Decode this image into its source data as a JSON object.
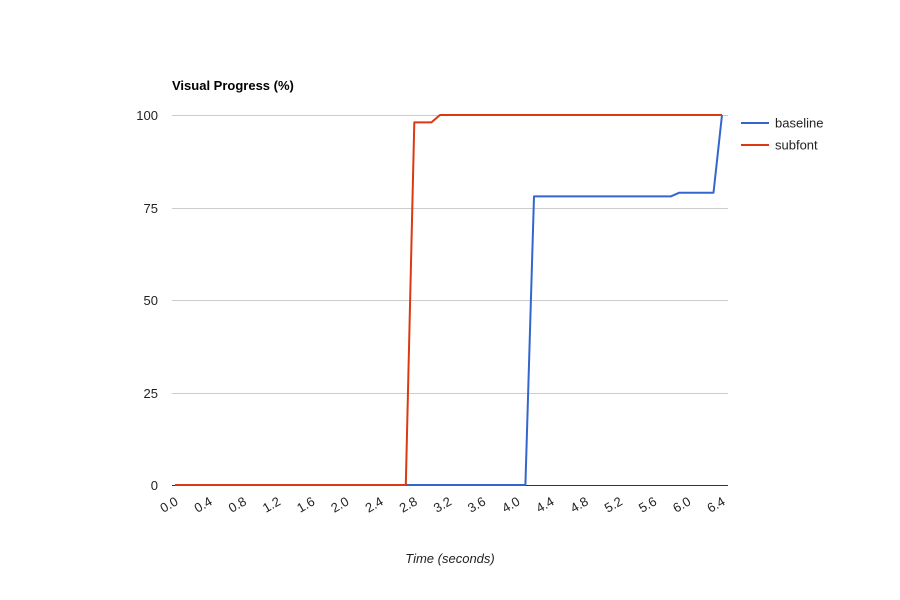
{
  "chart_data": {
    "type": "line",
    "title": "Visual Progress (%)",
    "xlabel": "Time (seconds)",
    "ylabel": "",
    "xlim": [
      0.0,
      6.4
    ],
    "ylim": [
      0,
      100
    ],
    "x_ticks": [
      "0.0",
      "0.4",
      "0.8",
      "1.2",
      "1.6",
      "2.0",
      "2.4",
      "2.8",
      "3.2",
      "3.6",
      "4.0",
      "4.4",
      "4.8",
      "5.2",
      "5.6",
      "6.0",
      "6.4"
    ],
    "y_ticks": [
      "0",
      "25",
      "50",
      "75",
      "100"
    ],
    "grid": true,
    "legend_position": "right",
    "series": [
      {
        "name": "baseline",
        "color": "#3366cc",
        "points": [
          [
            0.0,
            0
          ],
          [
            4.1,
            0
          ],
          [
            4.2,
            78
          ],
          [
            5.8,
            78
          ],
          [
            5.9,
            79
          ],
          [
            6.3,
            79
          ],
          [
            6.4,
            100
          ]
        ]
      },
      {
        "name": "subfont",
        "color": "#dc3912",
        "points": [
          [
            0.0,
            0
          ],
          [
            2.7,
            0
          ],
          [
            2.8,
            98
          ],
          [
            3.0,
            98
          ],
          [
            3.1,
            100
          ],
          [
            6.4,
            100
          ]
        ]
      }
    ]
  }
}
